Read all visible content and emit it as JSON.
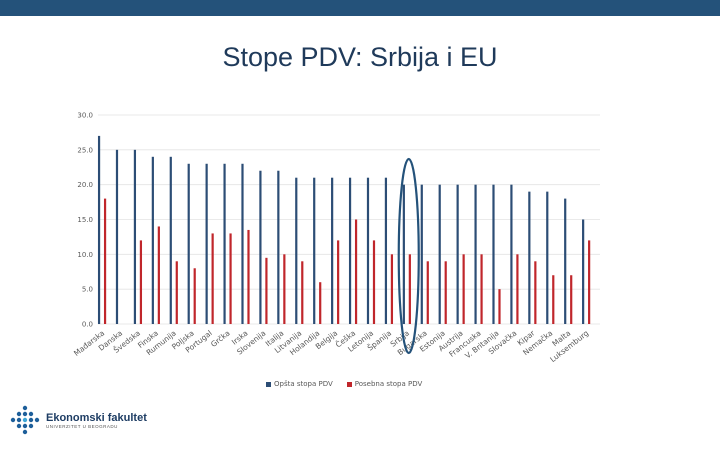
{
  "slide": {
    "title": "Stope PDV: Srbija i EU"
  },
  "logo": {
    "name": "Ekonomski fakultet",
    "subtitle": "UNIVERZITET U BEOGRADU"
  },
  "colors": {
    "topbar": "#24527a",
    "general_rate": "#2c4d75",
    "reduced_rate": "#c0262b",
    "highlight": "#24527a"
  },
  "chart_data": {
    "type": "bar",
    "title": "",
    "xlabel": "",
    "ylabel": "",
    "ylim": [
      0,
      30
    ],
    "yticks": [
      "0.0",
      "5.0",
      "10.0",
      "15.0",
      "20.0",
      "25.0",
      "30.0"
    ],
    "grid": true,
    "legend_position": "bottom",
    "highlight_category": "Srbija",
    "categories": [
      "Mađarska",
      "Danska",
      "Švedska",
      "Finska",
      "Rumunija",
      "Poljska",
      "Portugal",
      "Grčka",
      "Irska",
      "Slovenija",
      "Italija",
      "Litvanija",
      "Holandija",
      "Belgija",
      "Češka",
      "Letonija",
      "Španija",
      "Srbija",
      "Bugarska",
      "Estonija",
      "Austrija",
      "Francuska",
      "V. Britanija",
      "Slovačka",
      "Kipar",
      "Nemačka",
      "Malta",
      "Luksemburg"
    ],
    "series": [
      {
        "name": "Opšta stopa PDV",
        "values": [
          27,
          25,
          25,
          24,
          24,
          23,
          23,
          23,
          23,
          22,
          22,
          21,
          21,
          21,
          21,
          21,
          21,
          20,
          20,
          20,
          20,
          20,
          20,
          20,
          19,
          19,
          18,
          15
        ]
      },
      {
        "name": "Posebna stopa PDV",
        "values": [
          18,
          0,
          12,
          14,
          9,
          8,
          13,
          13,
          13.5,
          9.5,
          10,
          9,
          6,
          12,
          15,
          12,
          10,
          10,
          9,
          9,
          10,
          10,
          5,
          10,
          9,
          7,
          7,
          12
        ]
      }
    ]
  }
}
